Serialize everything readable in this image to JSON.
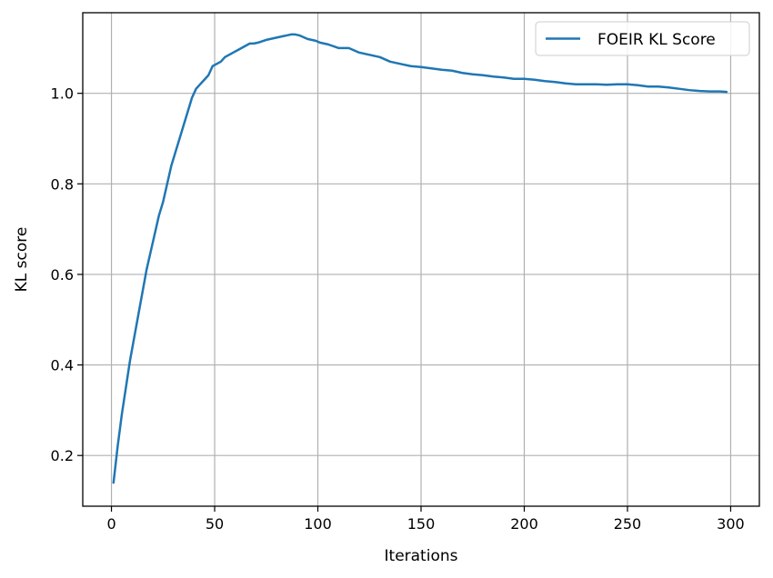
{
  "chart_data": {
    "type": "line",
    "title": "",
    "xlabel": "Iterations",
    "ylabel": "KL score",
    "xlim": [
      -13.9,
      313.9
    ],
    "ylim": [
      0.088,
      1.178
    ],
    "xticks": [
      0,
      50,
      100,
      150,
      200,
      250,
      300
    ],
    "yticks": [
      0.2,
      0.4,
      0.6,
      0.8,
      1.0
    ],
    "xtick_labels": [
      "0",
      "50",
      "100",
      "150",
      "200",
      "250",
      "300"
    ],
    "ytick_labels": [
      "0.2",
      "0.4",
      "0.6",
      "0.8",
      "1.0"
    ],
    "grid": true,
    "legend": {
      "position": "top-right",
      "entries": [
        "FOEIR KL Score"
      ]
    },
    "series": [
      {
        "name": "FOEIR KL Score",
        "color": "#1f77b4",
        "points": [
          [
            1,
            0.14
          ],
          [
            3,
            0.22
          ],
          [
            5,
            0.29
          ],
          [
            7,
            0.35
          ],
          [
            9,
            0.41
          ],
          [
            11,
            0.46
          ],
          [
            13,
            0.51
          ],
          [
            15,
            0.56
          ],
          [
            17,
            0.61
          ],
          [
            19,
            0.65
          ],
          [
            21,
            0.69
          ],
          [
            23,
            0.73
          ],
          [
            25,
            0.76
          ],
          [
            27,
            0.8
          ],
          [
            29,
            0.84
          ],
          [
            31,
            0.87
          ],
          [
            33,
            0.9
          ],
          [
            35,
            0.93
          ],
          [
            37,
            0.96
          ],
          [
            39,
            0.99
          ],
          [
            41,
            1.01
          ],
          [
            43,
            1.02
          ],
          [
            45,
            1.03
          ],
          [
            47,
            1.04
          ],
          [
            49,
            1.06
          ],
          [
            51,
            1.065
          ],
          [
            53,
            1.07
          ],
          [
            55,
            1.08
          ],
          [
            57,
            1.085
          ],
          [
            59,
            1.09
          ],
          [
            61,
            1.095
          ],
          [
            63,
            1.1
          ],
          [
            65,
            1.105
          ],
          [
            67,
            1.11
          ],
          [
            69,
            1.11
          ],
          [
            71,
            1.112
          ],
          [
            73,
            1.115
          ],
          [
            75,
            1.118
          ],
          [
            77,
            1.12
          ],
          [
            79,
            1.122
          ],
          [
            81,
            1.124
          ],
          [
            83,
            1.126
          ],
          [
            85,
            1.128
          ],
          [
            87,
            1.13
          ],
          [
            89,
            1.13
          ],
          [
            91,
            1.128
          ],
          [
            93,
            1.124
          ],
          [
            95,
            1.12
          ],
          [
            97,
            1.118
          ],
          [
            99,
            1.116
          ],
          [
            101,
            1.112
          ],
          [
            103,
            1.11
          ],
          [
            105,
            1.108
          ],
          [
            110,
            1.1
          ],
          [
            115,
            1.1
          ],
          [
            120,
            1.09
          ],
          [
            125,
            1.085
          ],
          [
            130,
            1.08
          ],
          [
            135,
            1.07
          ],
          [
            140,
            1.065
          ],
          [
            145,
            1.06
          ],
          [
            150,
            1.058
          ],
          [
            155,
            1.055
          ],
          [
            160,
            1.052
          ],
          [
            165,
            1.05
          ],
          [
            170,
            1.045
          ],
          [
            175,
            1.042
          ],
          [
            180,
            1.04
          ],
          [
            185,
            1.037
          ],
          [
            190,
            1.035
          ],
          [
            195,
            1.032
          ],
          [
            200,
            1.032
          ],
          [
            205,
            1.03
          ],
          [
            210,
            1.027
          ],
          [
            215,
            1.025
          ],
          [
            220,
            1.022
          ],
          [
            225,
            1.02
          ],
          [
            230,
            1.02
          ],
          [
            235,
            1.02
          ],
          [
            240,
            1.019
          ],
          [
            245,
            1.02
          ],
          [
            250,
            1.02
          ],
          [
            255,
            1.018
          ],
          [
            260,
            1.015
          ],
          [
            265,
            1.015
          ],
          [
            270,
            1.013
          ],
          [
            275,
            1.01
          ],
          [
            280,
            1.007
          ],
          [
            285,
            1.005
          ],
          [
            290,
            1.004
          ],
          [
            295,
            1.004
          ],
          [
            298,
            1.003
          ]
        ]
      }
    ]
  }
}
